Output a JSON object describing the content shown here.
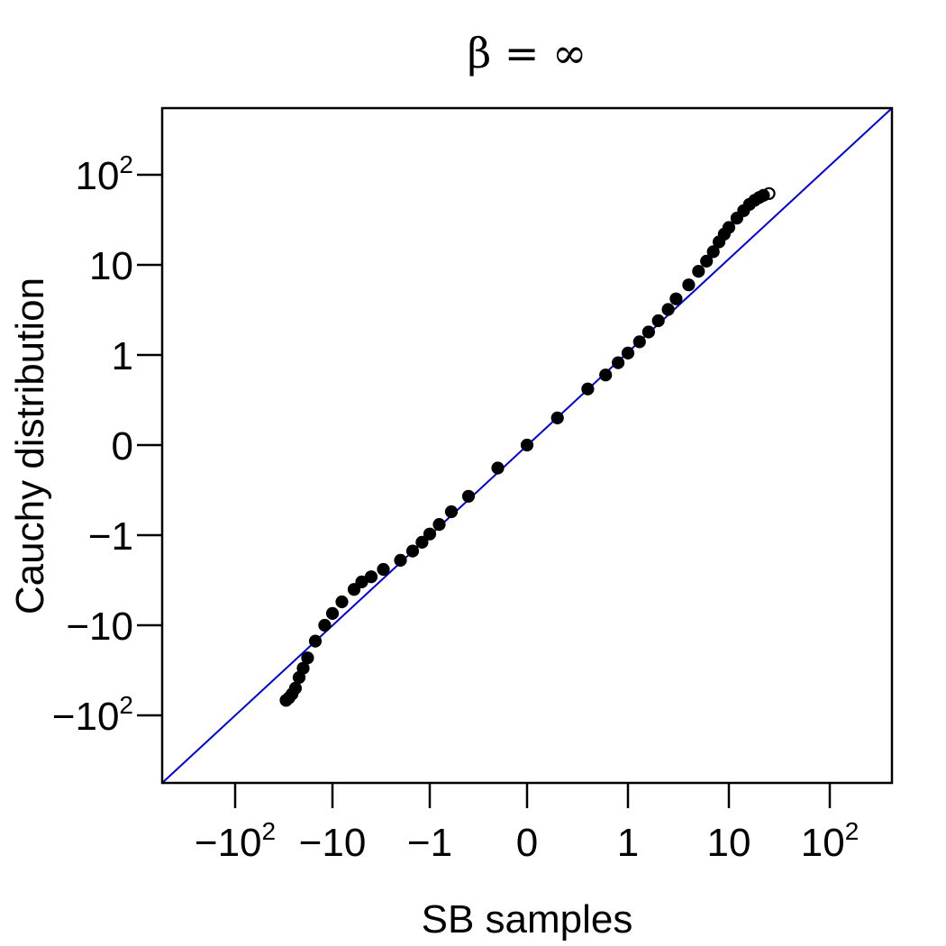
{
  "chart_data": {
    "type": "scatter",
    "title": "β = ∞",
    "xlabel": "SB samples",
    "ylabel": "Cauchy distribution",
    "x_scale": "signed-log",
    "y_scale": "signed-log",
    "x_ticks": [
      {
        "value": -100,
        "label": "−10",
        "sup": "2"
      },
      {
        "value": -10,
        "label": "−10",
        "sup": ""
      },
      {
        "value": -1,
        "label": "−1",
        "sup": ""
      },
      {
        "value": 0,
        "label": "0",
        "sup": ""
      },
      {
        "value": 1,
        "label": "1",
        "sup": ""
      },
      {
        "value": 10,
        "label": "10",
        "sup": ""
      },
      {
        "value": 100,
        "label": "10",
        "sup": "2"
      }
    ],
    "y_ticks": [
      {
        "value": 100,
        "label": "10",
        "sup": "2"
      },
      {
        "value": 10,
        "label": "10",
        "sup": ""
      },
      {
        "value": 1,
        "label": "1",
        "sup": ""
      },
      {
        "value": 0,
        "label": "0",
        "sup": ""
      },
      {
        "value": -1,
        "label": "−1",
        "sup": ""
      },
      {
        "value": -10,
        "label": "−10",
        "sup": ""
      },
      {
        "value": -100,
        "label": "−10",
        "sup": "2"
      }
    ],
    "reference_line": {
      "type": "identity",
      "color": "#0000dd"
    },
    "series": [
      {
        "points": [
          [
            -30,
            -68
          ],
          [
            -28,
            -64
          ],
          [
            -26,
            -58
          ],
          [
            -24,
            -50
          ],
          [
            -22,
            -38
          ],
          [
            -20,
            -30
          ],
          [
            -18,
            -23
          ],
          [
            -15,
            -15
          ],
          [
            -12,
            -10
          ],
          [
            -10,
            -7.4
          ],
          [
            -8,
            -5.5
          ],
          [
            -6,
            -4.0
          ],
          [
            -5,
            -3.3
          ],
          [
            -4,
            -2.9
          ],
          [
            -3,
            -2.4
          ],
          [
            -2,
            -1.9
          ],
          [
            -1.5,
            -1.5
          ],
          [
            -1.2,
            -1.2
          ],
          [
            -1,
            -0.97
          ],
          [
            -0.8,
            -0.76
          ],
          [
            -0.6,
            -0.55
          ],
          [
            -0.4,
            -0.37
          ],
          [
            -0.2,
            -0.18
          ],
          [
            0,
            0
          ],
          [
            0.2,
            0.2
          ],
          [
            0.4,
            0.42
          ],
          [
            0.6,
            0.6
          ],
          [
            0.8,
            0.82
          ],
          [
            1,
            1.05
          ],
          [
            1.3,
            1.4
          ],
          [
            1.6,
            1.8
          ],
          [
            2,
            2.4
          ],
          [
            2.5,
            3.2
          ],
          [
            3,
            4.2
          ],
          [
            4,
            6.0
          ],
          [
            5,
            8.5
          ],
          [
            6,
            11
          ],
          [
            7,
            14
          ],
          [
            8,
            18
          ],
          [
            9,
            22
          ],
          [
            10,
            26
          ],
          [
            12,
            33
          ],
          [
            14,
            40
          ],
          [
            16,
            47
          ],
          [
            18,
            52
          ],
          [
            20,
            56
          ],
          [
            22,
            59
          ],
          [
            25,
            62
          ]
        ]
      }
    ]
  }
}
